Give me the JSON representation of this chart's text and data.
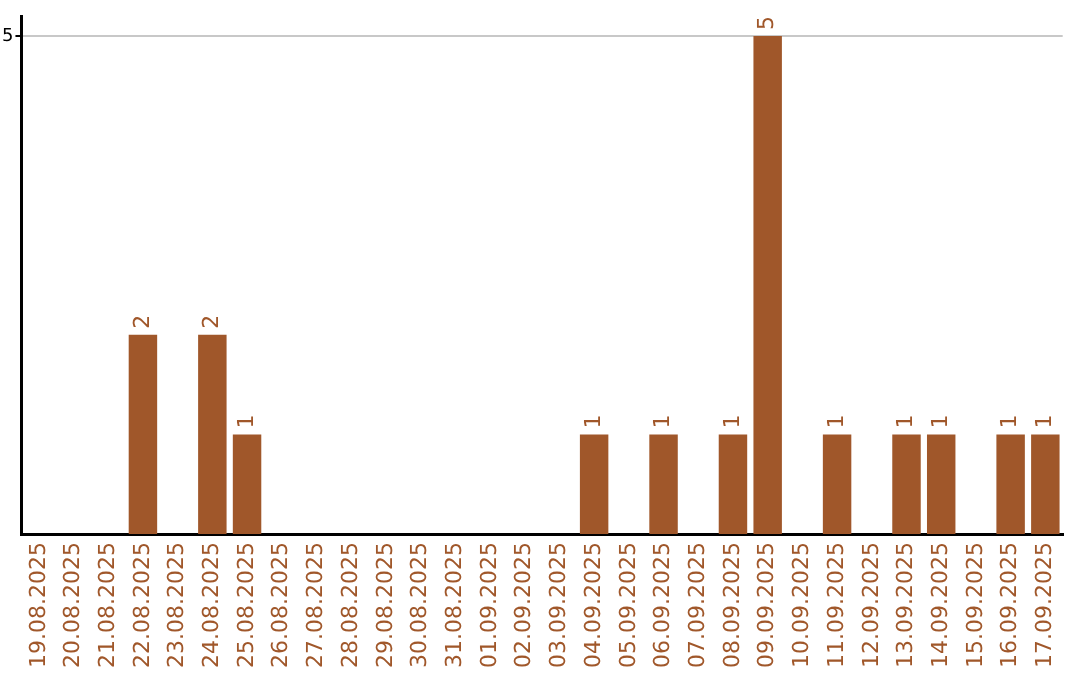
{
  "chart_data": {
    "type": "bar",
    "categories": [
      "19.08.2025",
      "20.08.2025",
      "21.08.2025",
      "22.08.2025",
      "23.08.2025",
      "24.08.2025",
      "25.08.2025",
      "26.08.2025",
      "27.08.2025",
      "28.08.2025",
      "29.08.2025",
      "30.08.2025",
      "31.08.2025",
      "01.09.2025",
      "02.09.2025",
      "03.09.2025",
      "04.09.2025",
      "05.09.2025",
      "06.09.2025",
      "07.09.2025",
      "08.09.2025",
      "09.09.2025",
      "10.09.2025",
      "11.09.2025",
      "12.09.2025",
      "13.09.2025",
      "14.09.2025",
      "15.09.2025",
      "16.09.2025",
      "17.09.2025"
    ],
    "values": [
      0,
      0,
      0,
      2,
      0,
      2,
      1,
      0,
      0,
      0,
      0,
      0,
      0,
      0,
      0,
      0,
      1,
      0,
      1,
      0,
      1,
      5,
      0,
      1,
      0,
      1,
      1,
      0,
      1,
      1
    ],
    "value_labels": [
      null,
      null,
      null,
      "2",
      null,
      "2",
      "1",
      null,
      null,
      null,
      null,
      null,
      null,
      null,
      null,
      null,
      "1",
      null,
      "1",
      null,
      "1",
      "5",
      null,
      "1",
      null,
      "1",
      "1",
      null,
      "1",
      "1"
    ],
    "color": "#a0572a",
    "ylim": [
      0,
      5.2
    ],
    "yticks": [
      5
    ],
    "grid": "y",
    "legend": false
  }
}
